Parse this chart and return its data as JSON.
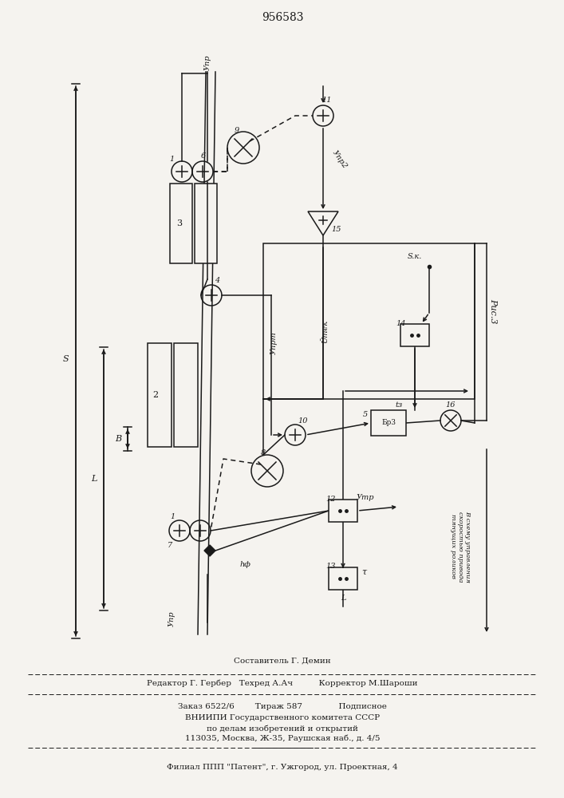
{
  "title": "956583",
  "bg_color": "#f5f3ef",
  "lc": "#1a1a1a",
  "fig_text": {
    "sostavitel": "Составитель Г. Демин",
    "redaktor": "Редактор Г. Гербер   Техред А.Ач          Корректор М.Шароши",
    "zakaz": "Заказ 6522/6        Тираж 587              Подписное",
    "vniip": "ВНИИПИ Государственного комитета СССР",
    "vniip2": "по делам изобретений и открытий",
    "vniip3": "113035, Москва, Ж-35, Раушская наб., д. 4/5",
    "filial": "Филиал ППП \"Патент\", г. Ужгород, ул. Проектная, 4"
  }
}
